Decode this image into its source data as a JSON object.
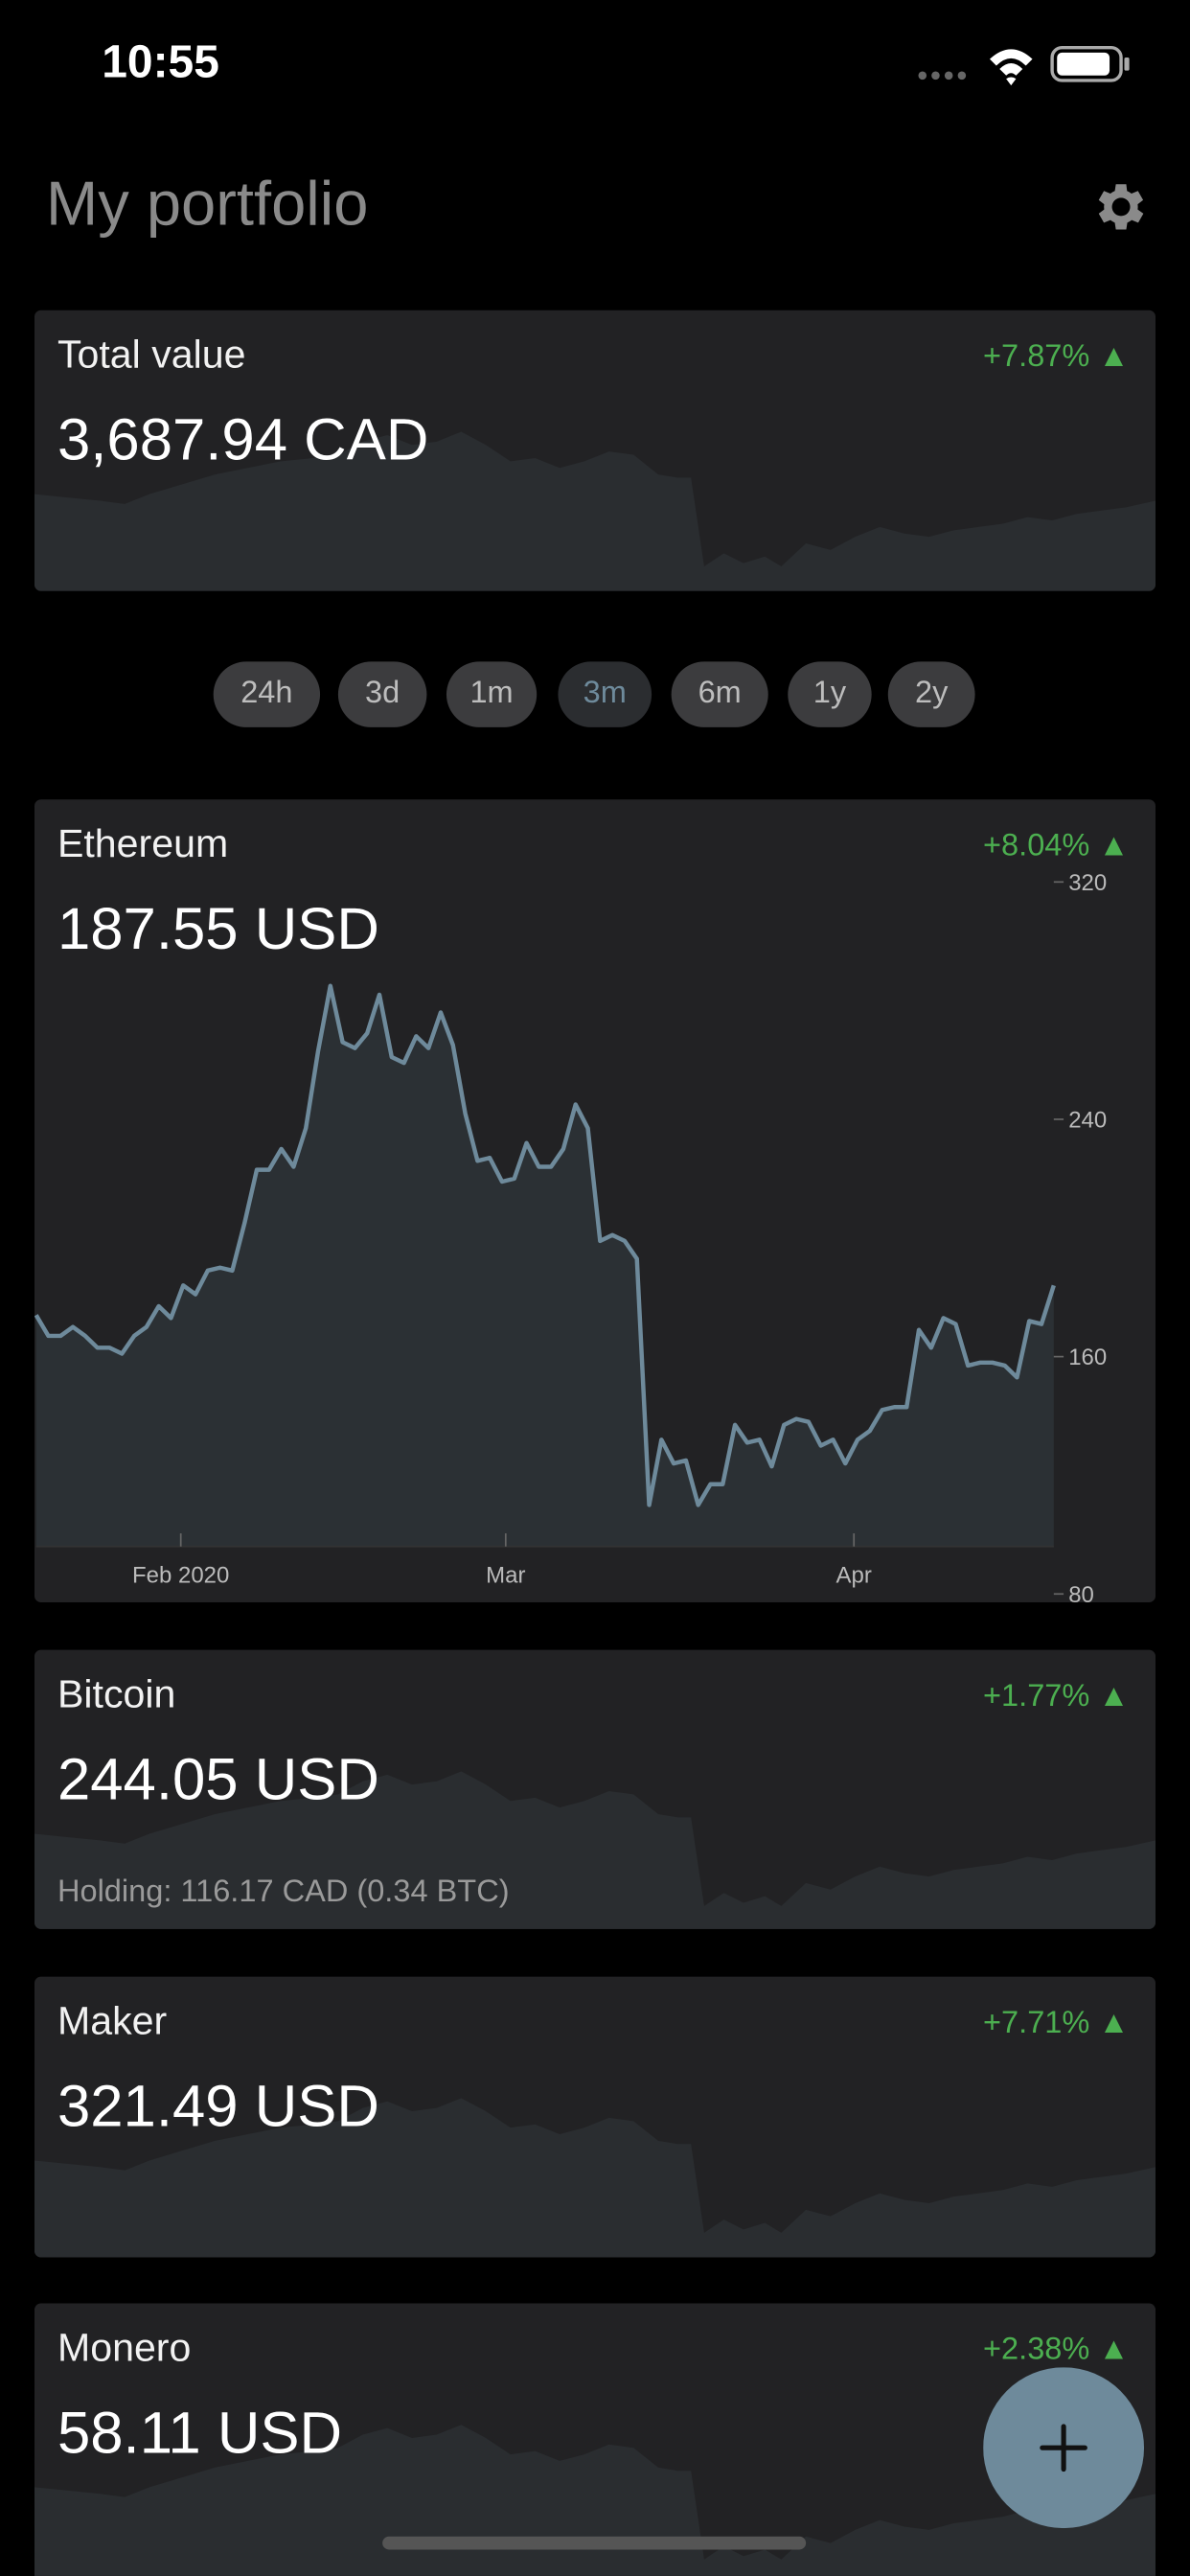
{
  "status_bar": {
    "time": "10:55"
  },
  "header": {
    "title": "My portfolio"
  },
  "total": {
    "label": "Total value",
    "value": "3,687.94 CAD",
    "change": "+7.87% ▲"
  },
  "ranges": {
    "options": [
      "24h",
      "3d",
      "1m",
      "3m",
      "6m",
      "1y",
      "2y"
    ],
    "selected": 3
  },
  "ethereum": {
    "name": "Ethereum",
    "price": "187.55 USD",
    "change": "+8.04% ▲",
    "chart": {
      "type": "line",
      "color": "#6e8a9b",
      "values": [
        174,
        167,
        167,
        170,
        167,
        163,
        163,
        161,
        167,
        170,
        177,
        173,
        184,
        181,
        189,
        190,
        189,
        205,
        223,
        223,
        230,
        224,
        237,
        263,
        285,
        266,
        264,
        269,
        282,
        261,
        259,
        268,
        264,
        276,
        265,
        242,
        226,
        227,
        219,
        220,
        232,
        224,
        224,
        230,
        245,
        237,
        199,
        201,
        199,
        193,
        110,
        132,
        124,
        125,
        110,
        117,
        117,
        137,
        131,
        132,
        123,
        137,
        139,
        138,
        130,
        132,
        124,
        132,
        135,
        142,
        143,
        143,
        169,
        163,
        173,
        171,
        157,
        158,
        158,
        157,
        153,
        172,
        171,
        184
      ],
      "xlim": [
        0,
        83
      ],
      "ylim": [
        96,
        324
      ],
      "xticks": [
        {
          "value": 11.8,
          "label": "Feb 2020"
        },
        {
          "value": 38.3,
          "label": "Mar"
        },
        {
          "value": 66.7,
          "label": "Apr"
        }
      ],
      "yticks": [
        80,
        160,
        240,
        320
      ]
    }
  },
  "bitcoin": {
    "name": "Bitcoin",
    "price": "244.05 USD",
    "change": "+1.77% ▲",
    "holding": "Holding: 116.17 CAD (0.34 BTC)"
  },
  "maker": {
    "name": "Maker",
    "price": "321.49 USD",
    "change": "+7.71% ▲"
  },
  "monero": {
    "name": "Monero",
    "price": "58.11 USD",
    "change": "+2.38% ▲"
  }
}
